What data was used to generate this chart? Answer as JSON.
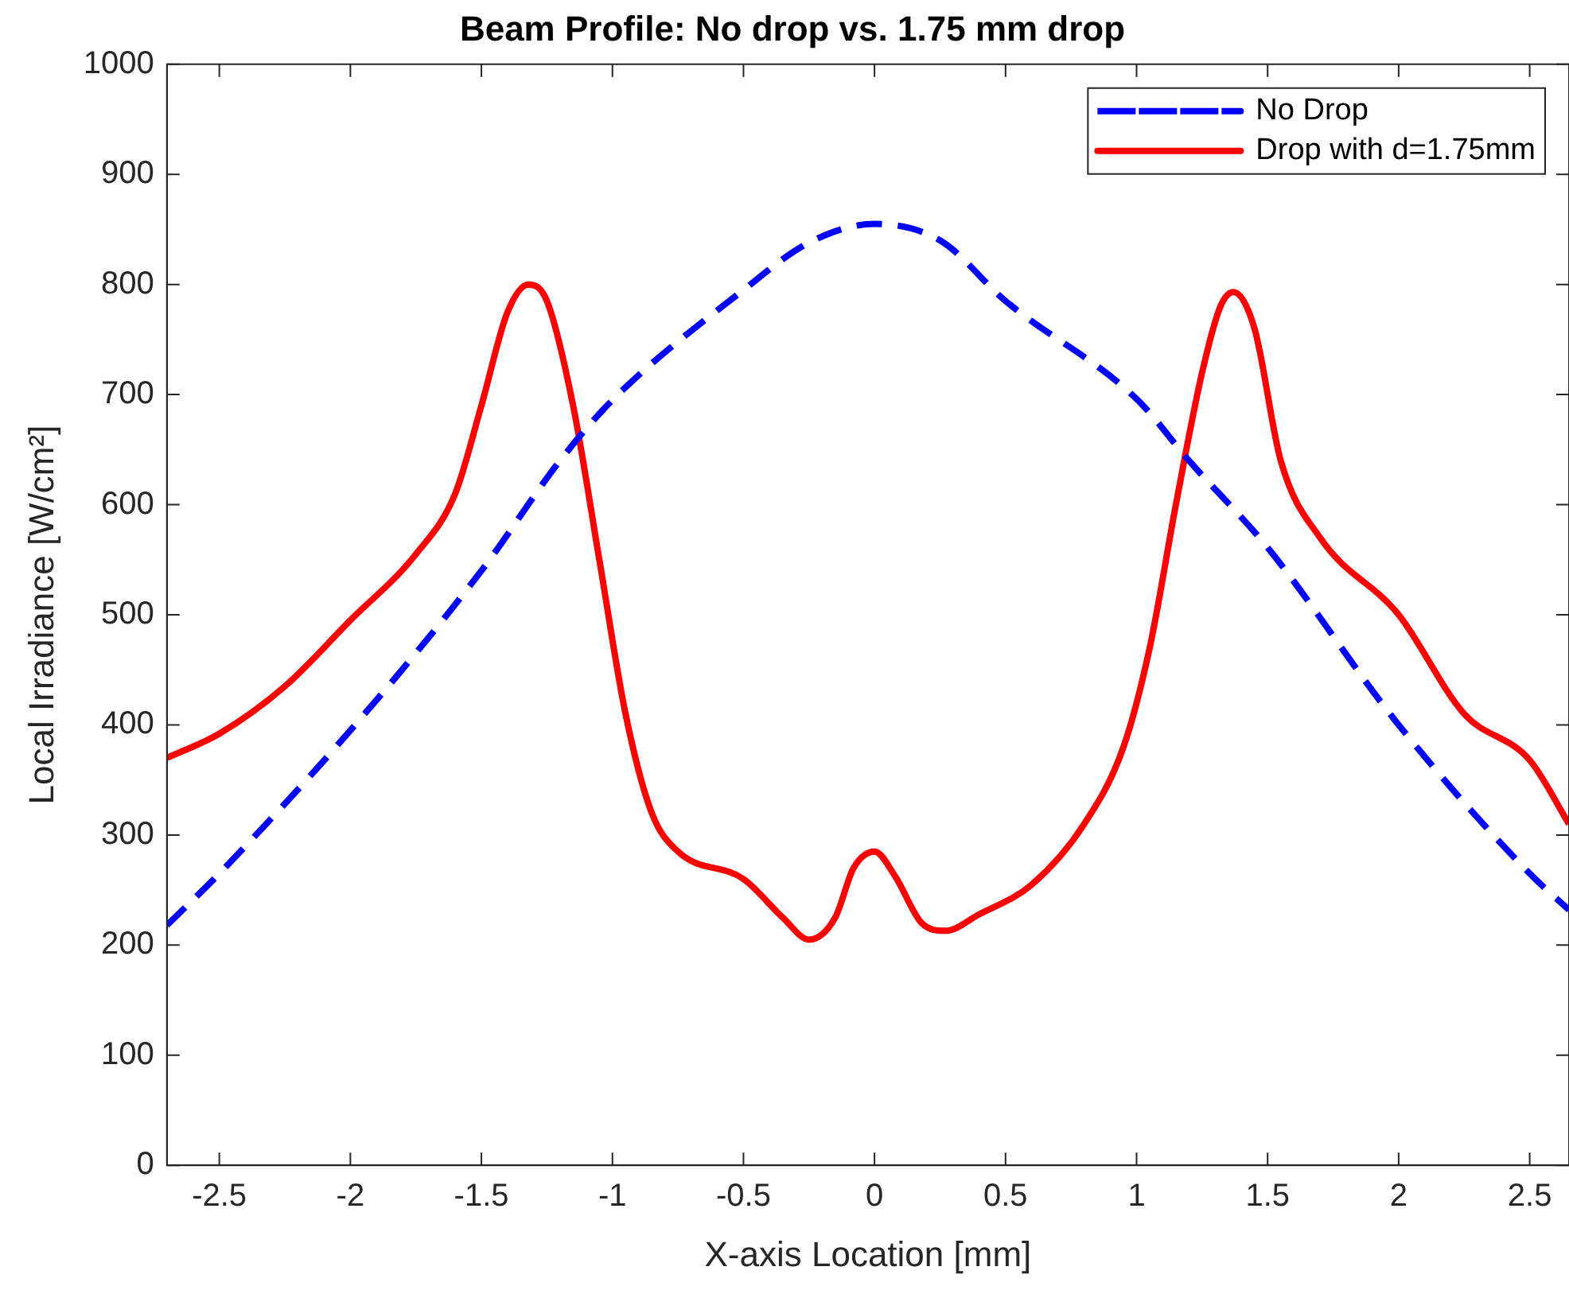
{
  "chart_data": {
    "type": "line",
    "title": "Beam Profile: No drop vs. 1.75 mm drop",
    "xlabel": "X-axis Location [mm]",
    "ylabel": "Local Irradiance [W/cm²]",
    "xlim": [
      -2.7,
      2.65
    ],
    "xticks": [
      -2.5,
      -2,
      -1.5,
      -1,
      -0.5,
      0,
      0.5,
      1,
      1.5,
      2,
      2.5
    ],
    "ylim": [
      0,
      1000
    ],
    "yticks": [
      0,
      100,
      200,
      300,
      400,
      500,
      600,
      700,
      800,
      900,
      1000
    ],
    "grid": false,
    "legend": "top right",
    "marker": "none",
    "series": [
      {
        "name": "No Drop",
        "color": "#0000ff",
        "line_style": "dashed",
        "x": [
          -2.7,
          -2.5,
          -2,
          -1.5,
          -1.2,
          -1,
          -0.5,
          -0.25,
          0,
          0.25,
          0.5,
          1,
          1.2,
          1.5,
          2,
          2.5,
          2.65
        ],
        "values": [
          218,
          265,
          395,
          540,
          640,
          695,
          795,
          838,
          855,
          840,
          785,
          696,
          640,
          561,
          400,
          265,
          232
        ]
      },
      {
        "name": "Drop with d=1.75mm",
        "color": "#ff0000",
        "line_style": "solid",
        "x": [
          -2.7,
          -2.5,
          -2.25,
          -2,
          -1.75,
          -1.6,
          -1.5,
          -1.4,
          -1.32,
          -1.25,
          -1.15,
          -1.05,
          -0.95,
          -0.85,
          -0.75,
          -0.5,
          -0.35,
          -0.25,
          -0.15,
          -0.08,
          0,
          0.08,
          0.18,
          0.27,
          0.4,
          0.6,
          0.8,
          0.95,
          1.05,
          1.15,
          1.25,
          1.32,
          1.37,
          1.45,
          1.55,
          1.7,
          2,
          2.25,
          2.5,
          2.65
        ],
        "values": [
          370,
          392,
          435,
          495,
          555,
          610,
          690,
          775,
          800,
          785,
          690,
          550,
          410,
          320,
          285,
          260,
          225,
          205,
          225,
          270,
          285,
          262,
          220,
          213,
          228,
          255,
          310,
          380,
          470,
          600,
          720,
          780,
          793,
          760,
          640,
          570,
          500,
          410,
          368,
          310
        ]
      }
    ]
  }
}
